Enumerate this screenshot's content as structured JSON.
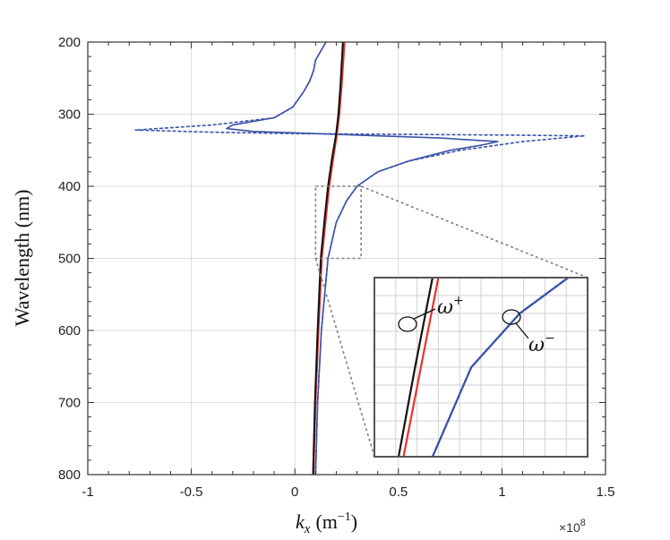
{
  "chart_data": {
    "type": "line",
    "xlabel": "k",
    "xlabel_sub": "x",
    "xlabel_unit": "(m",
    "xlabel_unit_exp": "−1",
    "xlabel_unit_close": ")",
    "ylabel": "Wavelength (nm)",
    "x_multiplier": "×10",
    "x_multiplier_exp": "8",
    "xlim": [
      -1,
      1.5
    ],
    "ylim": [
      200,
      800
    ],
    "y_reversed": true,
    "grid": true,
    "x_ticks": [
      -1,
      -0.5,
      0,
      0.5,
      1,
      1.5
    ],
    "x_tick_labels": [
      "-1",
      "-0.5",
      "0",
      "0.5",
      "1",
      "1.5"
    ],
    "y_ticks": [
      200,
      300,
      400,
      500,
      600,
      700,
      800
    ],
    "y_tick_labels": [
      "200",
      "300",
      "400",
      "500",
      "600",
      "700",
      "800"
    ],
    "colors": {
      "black": "#111111",
      "red": "#e8322e",
      "blue": "#3a52a8",
      "gray": "#808080"
    },
    "series": [
      {
        "color": "black",
        "dash": "solid",
        "x": [
          0.088,
          0.097,
          0.11,
          0.125,
          0.142,
          0.16,
          0.18,
          0.198,
          0.21,
          0.22,
          0.232
        ],
        "y": [
          800,
          700,
          600,
          500,
          450,
          400,
          360,
          330,
          300,
          260,
          200
        ]
      },
      {
        "color": "red",
        "dash": "solid",
        "x": [
          0.09,
          0.1,
          0.114,
          0.13,
          0.148,
          0.166,
          0.186,
          0.202,
          0.215,
          0.226,
          0.24
        ],
        "y": [
          800,
          700,
          600,
          500,
          450,
          400,
          360,
          330,
          300,
          260,
          200
        ]
      },
      {
        "color": "blue",
        "dash": "solid",
        "x": [
          0.1,
          0.11,
          0.128,
          0.16,
          0.2,
          0.25,
          0.3,
          0.4,
          0.55,
          0.75,
          0.9,
          0.98,
          0.7,
          0.4,
          0.1,
          -0.2,
          -0.33,
          -0.3,
          -0.1,
          -0.01,
          0.04,
          0.07,
          0.09,
          0.1,
          0.12,
          0.14,
          0.15
        ],
        "y": [
          800,
          700,
          600,
          500,
          450,
          420,
          400,
          380,
          365,
          350,
          343,
          338,
          333,
          330,
          327,
          324,
          320,
          315,
          305,
          290,
          270,
          255,
          240,
          225,
          215,
          205,
          200
        ]
      },
      {
        "color": "blue",
        "dash": "dashed",
        "x": [
          0.1,
          0.11,
          0.128,
          0.16,
          0.2,
          0.25,
          0.3,
          0.4,
          0.55,
          0.8,
          1.1,
          1.4,
          1.0,
          0.5,
          0.0,
          -0.4,
          -0.77,
          -0.4,
          -0.1,
          -0.01,
          0.04,
          0.07,
          0.09,
          0.1,
          0.12,
          0.14,
          0.15
        ],
        "y": [
          800,
          700,
          600,
          500,
          450,
          420,
          400,
          380,
          365,
          350,
          338,
          330,
          329,
          328,
          327,
          325,
          322,
          315,
          305,
          290,
          270,
          255,
          240,
          225,
          215,
          205,
          200
        ]
      }
    ],
    "zoom_box": {
      "x": [
        0.1,
        0.32
      ],
      "y": [
        400,
        500
      ]
    },
    "inset": {
      "labels": [
        {
          "text": "ω",
          "sup": "+"
        },
        {
          "text": "ω",
          "sup": "−"
        }
      ]
    }
  }
}
